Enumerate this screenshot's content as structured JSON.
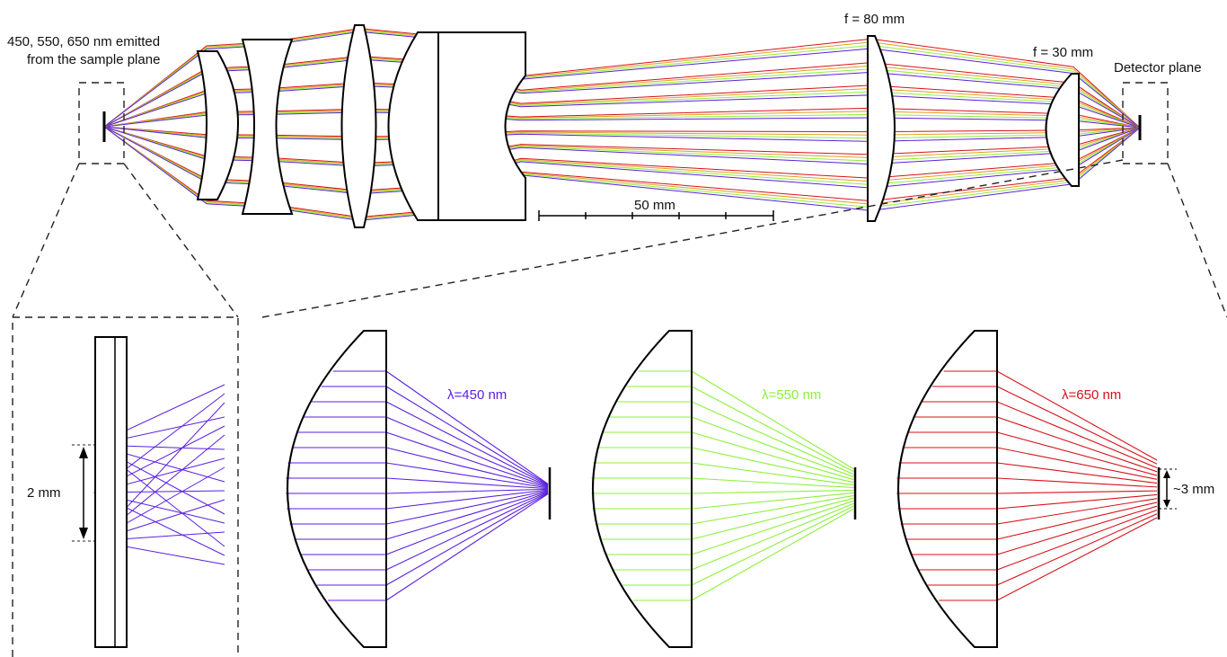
{
  "labels": {
    "source": [
      "450, 550, 650 nm emitted",
      "from the sample plane"
    ],
    "f80": "f = 80 mm",
    "f30": "f = 30 mm",
    "detector": "Detector plane",
    "scale": "50 mm",
    "sample_spacing": "2 mm",
    "spot_size": "~3 mm"
  },
  "panels": [
    {
      "label": "λ=450 nm",
      "color": "#5a1fe0"
    },
    {
      "label": "λ=550 nm",
      "color": "#8cf03a"
    },
    {
      "label": "λ=650 nm",
      "color": "#d8101a"
    }
  ],
  "colors": {
    "blue": "#5a1fe0",
    "green": "#8cf03a",
    "red": "#d8101a",
    "orange": "#e0a020"
  }
}
